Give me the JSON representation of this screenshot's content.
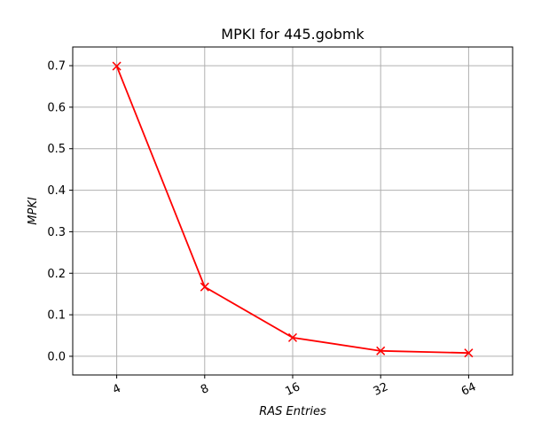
{
  "chart_data": {
    "type": "line",
    "title": "MPKI for 445.gobmk",
    "xlabel": "RAS Entries",
    "ylabel": "MPKI",
    "categories": [
      "4",
      "8",
      "16",
      "32",
      "64"
    ],
    "series": [
      {
        "values": [
          0.699,
          0.167,
          0.045,
          0.013,
          0.008
        ],
        "color": "#ff0000",
        "marker": "x"
      }
    ],
    "ylim": [
      -0.045,
      0.745
    ],
    "yticks": [
      0.0,
      0.1,
      0.2,
      0.3,
      0.4,
      0.5,
      0.6,
      0.7
    ],
    "grid": true
  }
}
